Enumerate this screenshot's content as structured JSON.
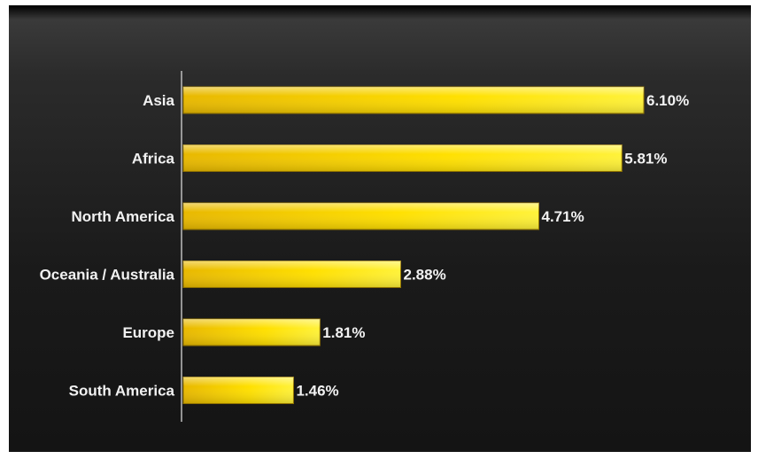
{
  "chart_data": {
    "type": "bar",
    "orientation": "horizontal",
    "categories": [
      "Asia",
      "Africa",
      "North America",
      "Oceania / Australia",
      "Europe",
      "South America"
    ],
    "values": [
      6.1,
      5.81,
      4.71,
      2.88,
      1.81,
      1.46
    ],
    "value_labels": [
      "6.10%",
      "5.81%",
      "4.71%",
      "2.88%",
      "1.81%",
      "1.46%"
    ],
    "unit": "%",
    "xlim": [
      0,
      6.1
    ],
    "grid": false,
    "legend": "none",
    "bar_color": "#f5c800",
    "bar_highlight": "#fff230",
    "background_color": "#1c1c1c",
    "text_color": "#f2f2f2"
  }
}
